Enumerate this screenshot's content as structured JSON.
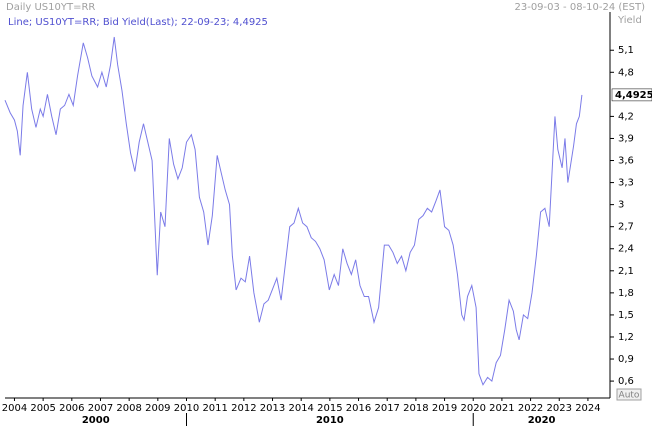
{
  "chart_data": {
    "type": "line",
    "header_left": "Daily US10YT=RR",
    "header_right": "23-09-03 - 08-10-24 (EST)",
    "y_axis_label": "Yield",
    "legend_text": "Line; US10YT=RR; Bid Yield(Last); 22-09-23; 4,4925",
    "last_label": "4,4925",
    "auto_label": "Auto",
    "xlim": [
      2003.67,
      2024.77
    ],
    "ylim": [
      0.37,
      5.62
    ],
    "xticks": [
      2004,
      2005,
      2006,
      2007,
      2008,
      2009,
      2010,
      2011,
      2012,
      2013,
      2014,
      2015,
      2016,
      2017,
      2018,
      2019,
      2020,
      2021,
      2022,
      2023,
      2024
    ],
    "decade_ticks": [
      2010,
      2020
    ],
    "decade_labels": [
      "2000",
      "2010",
      "2020"
    ],
    "yticks": [
      {
        "value": 0.6,
        "label": "0,6"
      },
      {
        "value": 0.9,
        "label": "0,9"
      },
      {
        "value": 1.2,
        "label": "1,2"
      },
      {
        "value": 1.5,
        "label": "1,5"
      },
      {
        "value": 1.8,
        "label": "1,8"
      },
      {
        "value": 2.1,
        "label": "2,1"
      },
      {
        "value": 2.4,
        "label": "2,4"
      },
      {
        "value": 2.7,
        "label": "2,7"
      },
      3,
      {
        "value": 3.3,
        "label": "3,3"
      },
      {
        "value": 3.6,
        "label": "3,6"
      },
      {
        "value": 3.9,
        "label": "3,9"
      },
      {
        "value": 4.2,
        "label": "4,2"
      },
      {
        "value": 4.8,
        "label": "4,8"
      },
      {
        "value": 5.1,
        "label": "5,1"
      }
    ],
    "x": [
      2003.67,
      2003.85,
      2004.0,
      2004.1,
      2004.2,
      2004.3,
      2004.45,
      2004.6,
      2004.75,
      2004.9,
      2005.0,
      2005.15,
      2005.3,
      2005.45,
      2005.6,
      2005.75,
      2005.9,
      2006.05,
      2006.2,
      2006.4,
      2006.55,
      2006.7,
      2006.9,
      2007.05,
      2007.2,
      2007.35,
      2007.48,
      2007.6,
      2007.75,
      2007.9,
      2008.05,
      2008.2,
      2008.35,
      2008.5,
      2008.65,
      2008.8,
      2008.98,
      2009.1,
      2009.25,
      2009.4,
      2009.55,
      2009.7,
      2009.85,
      2010.0,
      2010.17,
      2010.3,
      2010.45,
      2010.6,
      2010.75,
      2010.9,
      2011.07,
      2011.2,
      2011.35,
      2011.5,
      2011.6,
      2011.73,
      2011.9,
      2012.05,
      2012.2,
      2012.35,
      2012.54,
      2012.7,
      2012.85,
      2013.0,
      2013.15,
      2013.3,
      2013.45,
      2013.6,
      2013.75,
      2013.9,
      2014.05,
      2014.2,
      2014.35,
      2014.5,
      2014.65,
      2014.8,
      2014.98,
      2015.15,
      2015.3,
      2015.45,
      2015.6,
      2015.75,
      2015.9,
      2016.05,
      2016.2,
      2016.35,
      2016.54,
      2016.7,
      2016.9,
      2017.05,
      2017.2,
      2017.35,
      2017.5,
      2017.65,
      2017.8,
      2017.95,
      2018.1,
      2018.25,
      2018.4,
      2018.55,
      2018.7,
      2018.84,
      2019.0,
      2019.15,
      2019.3,
      2019.45,
      2019.6,
      2019.68,
      2019.8,
      2019.95,
      2020.1,
      2020.2,
      2020.34,
      2020.5,
      2020.65,
      2020.8,
      2020.95,
      2021.1,
      2021.25,
      2021.4,
      2021.5,
      2021.6,
      2021.75,
      2021.9,
      2022.05,
      2022.2,
      2022.35,
      2022.5,
      2022.65,
      2022.85,
      2022.95,
      2023.1,
      2023.2,
      2023.3,
      2023.4,
      2023.5,
      2023.6,
      2023.7,
      2023.79
    ],
    "series": [
      {
        "name": "US10YT=RR",
        "color": "#7b7be8",
        "values": [
          4.42,
          4.25,
          4.15,
          4.0,
          3.67,
          4.35,
          4.8,
          4.3,
          4.05,
          4.3,
          4.2,
          4.5,
          4.2,
          3.95,
          4.3,
          4.35,
          4.5,
          4.35,
          4.75,
          5.2,
          5.0,
          4.75,
          4.6,
          4.8,
          4.6,
          4.9,
          5.28,
          4.9,
          4.55,
          4.1,
          3.7,
          3.45,
          3.85,
          4.1,
          3.85,
          3.6,
          2.04,
          2.9,
          2.7,
          3.9,
          3.55,
          3.35,
          3.5,
          3.85,
          3.95,
          3.75,
          3.1,
          2.9,
          2.45,
          2.85,
          3.67,
          3.45,
          3.2,
          3.0,
          2.3,
          1.84,
          2.0,
          1.95,
          2.3,
          1.8,
          1.4,
          1.65,
          1.7,
          1.85,
          2.0,
          1.7,
          2.2,
          2.7,
          2.75,
          2.95,
          2.75,
          2.7,
          2.55,
          2.5,
          2.4,
          2.25,
          1.84,
          2.05,
          1.9,
          2.4,
          2.2,
          2.05,
          2.25,
          1.9,
          1.75,
          1.75,
          1.4,
          1.6,
          2.45,
          2.45,
          2.35,
          2.2,
          2.3,
          2.1,
          2.35,
          2.45,
          2.8,
          2.85,
          2.95,
          2.9,
          3.05,
          3.2,
          2.7,
          2.65,
          2.45,
          2.05,
          1.5,
          1.43,
          1.75,
          1.9,
          1.6,
          0.7,
          0.55,
          0.65,
          0.6,
          0.85,
          0.95,
          1.3,
          1.7,
          1.55,
          1.3,
          1.16,
          1.5,
          1.45,
          1.8,
          2.3,
          2.9,
          2.95,
          2.7,
          4.2,
          3.75,
          3.5,
          3.9,
          3.3,
          3.55,
          3.8,
          4.1,
          4.2,
          4.4925
        ]
      }
    ]
  }
}
